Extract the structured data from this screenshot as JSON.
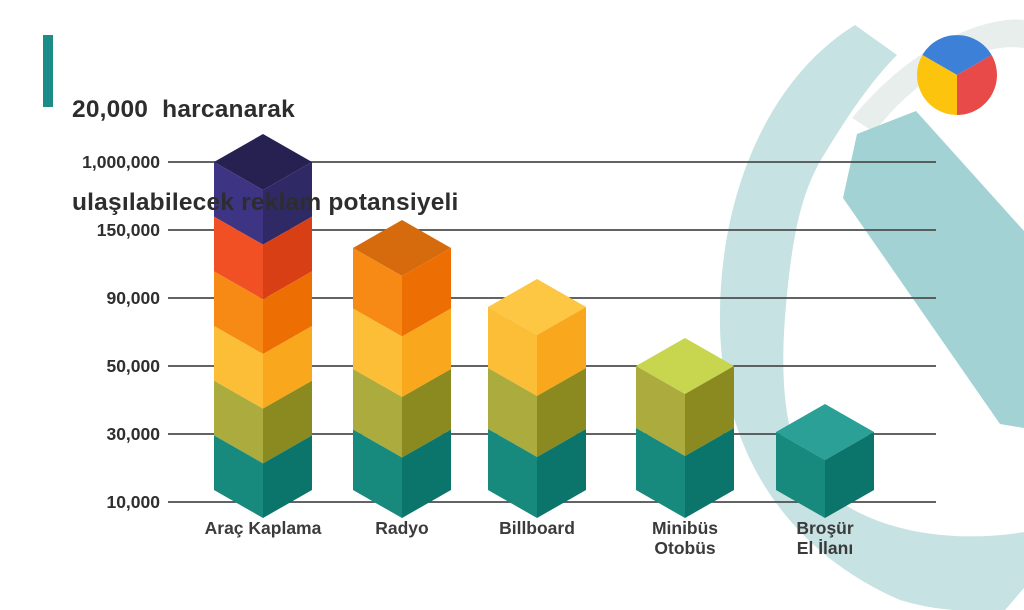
{
  "title": {
    "line1": "20,000  harcanarak",
    "line2": "ulaşılabilecek reklam potansiyeli",
    "accent_color": "#1b8c87",
    "text_color": "#2e2d2d"
  },
  "logo": {
    "type": "pie-chart-logo",
    "slice_colors": {
      "blue": "#3c80d8",
      "red": "#e84a49",
      "yellow": "#fcc40d"
    }
  },
  "chart_data": {
    "type": "bar",
    "title": "20,000 harcanarak ulaşılabilecek reklam potansiyeli",
    "categories": [
      [
        "Araç Kaplama"
      ],
      [
        "Radyo"
      ],
      [
        "Billboard"
      ],
      [
        "Minibüs",
        "Otobüs"
      ],
      [
        "Broşür",
        "El İlanı"
      ]
    ],
    "values": [
      1000000,
      150000,
      90000,
      50000,
      30000
    ],
    "cube_counts": [
      6,
      4,
      3,
      2,
      1
    ],
    "y_tick_labels": [
      "1,000,000",
      "150,000",
      "90,000",
      "50,000",
      "30,000",
      "10,000"
    ],
    "y_tick_values": [
      1000000,
      150000,
      90000,
      50000,
      30000,
      10000
    ],
    "xlabel": "",
    "ylabel": "",
    "grid": true,
    "legend": false,
    "gridline_color": "#4d4d4d",
    "tick_label_color": "#2f2f2f",
    "category_label_color": "#3b3b3b",
    "stack_order_bottom_to_top": [
      "teal",
      "olive",
      "yellow",
      "orange",
      "red",
      "navy"
    ],
    "cube_face_colors": {
      "navy": {
        "left": "#3d3484",
        "right": "#2f2a66",
        "top": "#262150"
      },
      "red": {
        "left": "#f05023",
        "right": "#d83f14",
        "top": "#c23a10"
      },
      "orange": {
        "left": "#f68a15",
        "right": "#ed6f03",
        "top": "#d66b0e"
      },
      "yellow": {
        "left": "#fcbe37",
        "right": "#f9a71d",
        "top": "#fdc643"
      },
      "olive": {
        "left": "#abab3e",
        "right": "#8a8a20",
        "top": "#c8d64f"
      },
      "teal": {
        "left": "#17897d",
        "right": "#0b756b",
        "top": "#2aa096"
      }
    }
  },
  "decor": {
    "crescent_color": "#c6e2e2",
    "diagonal_band_color": "#a3d2d4",
    "faint_arc_color": "#e8eeec"
  }
}
